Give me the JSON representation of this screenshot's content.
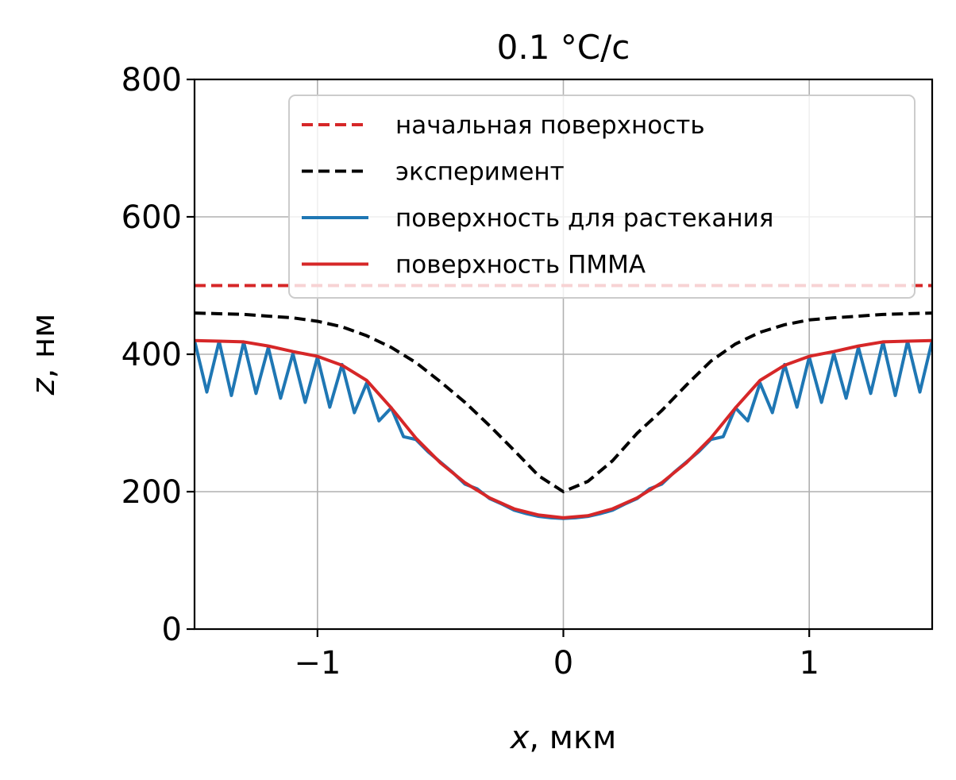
{
  "chart_data": {
    "type": "line",
    "title": "0.1 °C/c",
    "xlabel_var": "x",
    "xlabel_unit": ", мкм",
    "ylabel_var": "z",
    "ylabel_unit": ", нм",
    "xlim": [
      -1.5,
      1.5
    ],
    "ylim": [
      0,
      800
    ],
    "xticks": [
      -1,
      0,
      1
    ],
    "xtick_labels": [
      "−1",
      "0",
      "1"
    ],
    "yticks": [
      0,
      200,
      400,
      600,
      800
    ],
    "ytick_labels": [
      "0",
      "200",
      "400",
      "600",
      "800"
    ],
    "grid": true,
    "legend_position": "top-right",
    "series": [
      {
        "name": "начальная поверхность",
        "color": "#d62728",
        "style": "dashed",
        "x": [
          -1.5,
          1.5
        ],
        "y": [
          500,
          500
        ]
      },
      {
        "name": "эксперимент",
        "color": "#000000",
        "style": "dashed",
        "x": [
          -1.5,
          -1.3,
          -1.1,
          -1.0,
          -0.9,
          -0.8,
          -0.7,
          -0.6,
          -0.5,
          -0.4,
          -0.3,
          -0.2,
          -0.1,
          0.0,
          0.1,
          0.2,
          0.3,
          0.4,
          0.5,
          0.6,
          0.7,
          0.8,
          0.9,
          1.0,
          1.1,
          1.3,
          1.5
        ],
        "y": [
          460,
          458,
          453,
          448,
          440,
          427,
          410,
          388,
          360,
          330,
          296,
          260,
          223,
          200,
          215,
          245,
          285,
          318,
          355,
          390,
          415,
          432,
          443,
          450,
          453,
          458,
          460
        ]
      },
      {
        "name": "поверхность для растекания",
        "color": "#1f77b4",
        "style": "solid",
        "x": [
          -1.5,
          -1.45,
          -1.4,
          -1.35,
          -1.3,
          -1.25,
          -1.2,
          -1.15,
          -1.1,
          -1.05,
          -1.0,
          -0.95,
          -0.9,
          -0.85,
          -0.8,
          -0.75,
          -0.7,
          -0.65,
          -0.6,
          -0.55,
          -0.5,
          -0.45,
          -0.4,
          -0.35,
          -0.3,
          -0.25,
          -0.2,
          -0.15,
          -0.1,
          -0.05,
          0.0,
          0.05,
          0.1,
          0.15,
          0.2,
          0.25,
          0.3,
          0.35,
          0.4,
          0.45,
          0.5,
          0.55,
          0.6,
          0.65,
          0.7,
          0.75,
          0.8,
          0.85,
          0.9,
          0.95,
          1.0,
          1.05,
          1.1,
          1.15,
          1.2,
          1.25,
          1.3,
          1.35,
          1.4,
          1.45,
          1.5
        ],
        "y": [
          420,
          345,
          419,
          340,
          418,
          343,
          410,
          336,
          401,
          330,
          396,
          323,
          385,
          315,
          358,
          303,
          322,
          280,
          276,
          258,
          243,
          228,
          211,
          204,
          190,
          182,
          173,
          168,
          164,
          162,
          161,
          162,
          164,
          168,
          173,
          182,
          190,
          204,
          211,
          228,
          243,
          258,
          276,
          280,
          322,
          303,
          358,
          315,
          385,
          323,
          396,
          330,
          401,
          336,
          410,
          343,
          418,
          340,
          419,
          345,
          420
        ]
      },
      {
        "name": "поверхность ПММА",
        "color": "#d62728",
        "style": "solid",
        "x": [
          -1.5,
          -1.4,
          -1.3,
          -1.2,
          -1.1,
          -1.0,
          -0.9,
          -0.8,
          -0.7,
          -0.6,
          -0.5,
          -0.4,
          -0.3,
          -0.2,
          -0.1,
          0.0,
          0.1,
          0.2,
          0.3,
          0.4,
          0.5,
          0.6,
          0.7,
          0.8,
          0.9,
          1.0,
          1.1,
          1.2,
          1.3,
          1.4,
          1.5
        ],
        "y": [
          420,
          419,
          418,
          412,
          404,
          397,
          384,
          362,
          322,
          278,
          242,
          213,
          191,
          175,
          166,
          162,
          165,
          175,
          191,
          213,
          242,
          278,
          322,
          362,
          384,
          397,
          404,
          412,
          418,
          419,
          420
        ]
      }
    ]
  }
}
